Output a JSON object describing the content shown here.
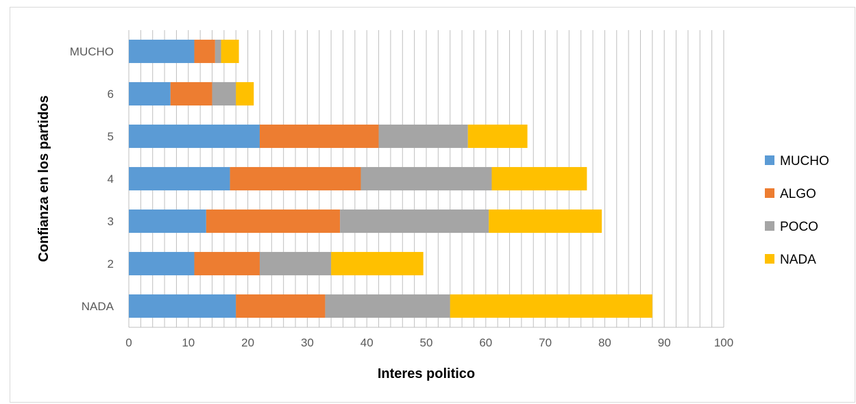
{
  "chart_data": {
    "type": "bar",
    "orientation": "horizontal",
    "stacked": true,
    "categories": [
      "MUCHO",
      "6",
      "5",
      "4",
      "3",
      "2",
      "NADA"
    ],
    "series": [
      {
        "name": "MUCHO",
        "color": "#5b9bd5",
        "values": [
          11,
          7,
          22,
          17,
          13,
          11,
          18
        ]
      },
      {
        "name": "ALGO",
        "color": "#ed7d31",
        "values": [
          3.5,
          7,
          20,
          22,
          22.5,
          11,
          15
        ]
      },
      {
        "name": "POCO",
        "color": "#a5a5a5",
        "values": [
          1,
          4,
          15,
          22,
          25,
          12,
          21
        ]
      },
      {
        "name": "NADA",
        "color": "#ffc000",
        "values": [
          3,
          3,
          10,
          16,
          19,
          15.5,
          34
        ]
      }
    ],
    "xlabel": "Interes politico",
    "ylabel": "Confianza en los partidos",
    "xlim": [
      0,
      100
    ],
    "xticks": [
      0,
      10,
      20,
      30,
      40,
      50,
      60,
      70,
      80,
      90,
      100
    ],
    "minor_gridlines_step": 2,
    "legend_position": "right",
    "grid": true
  }
}
